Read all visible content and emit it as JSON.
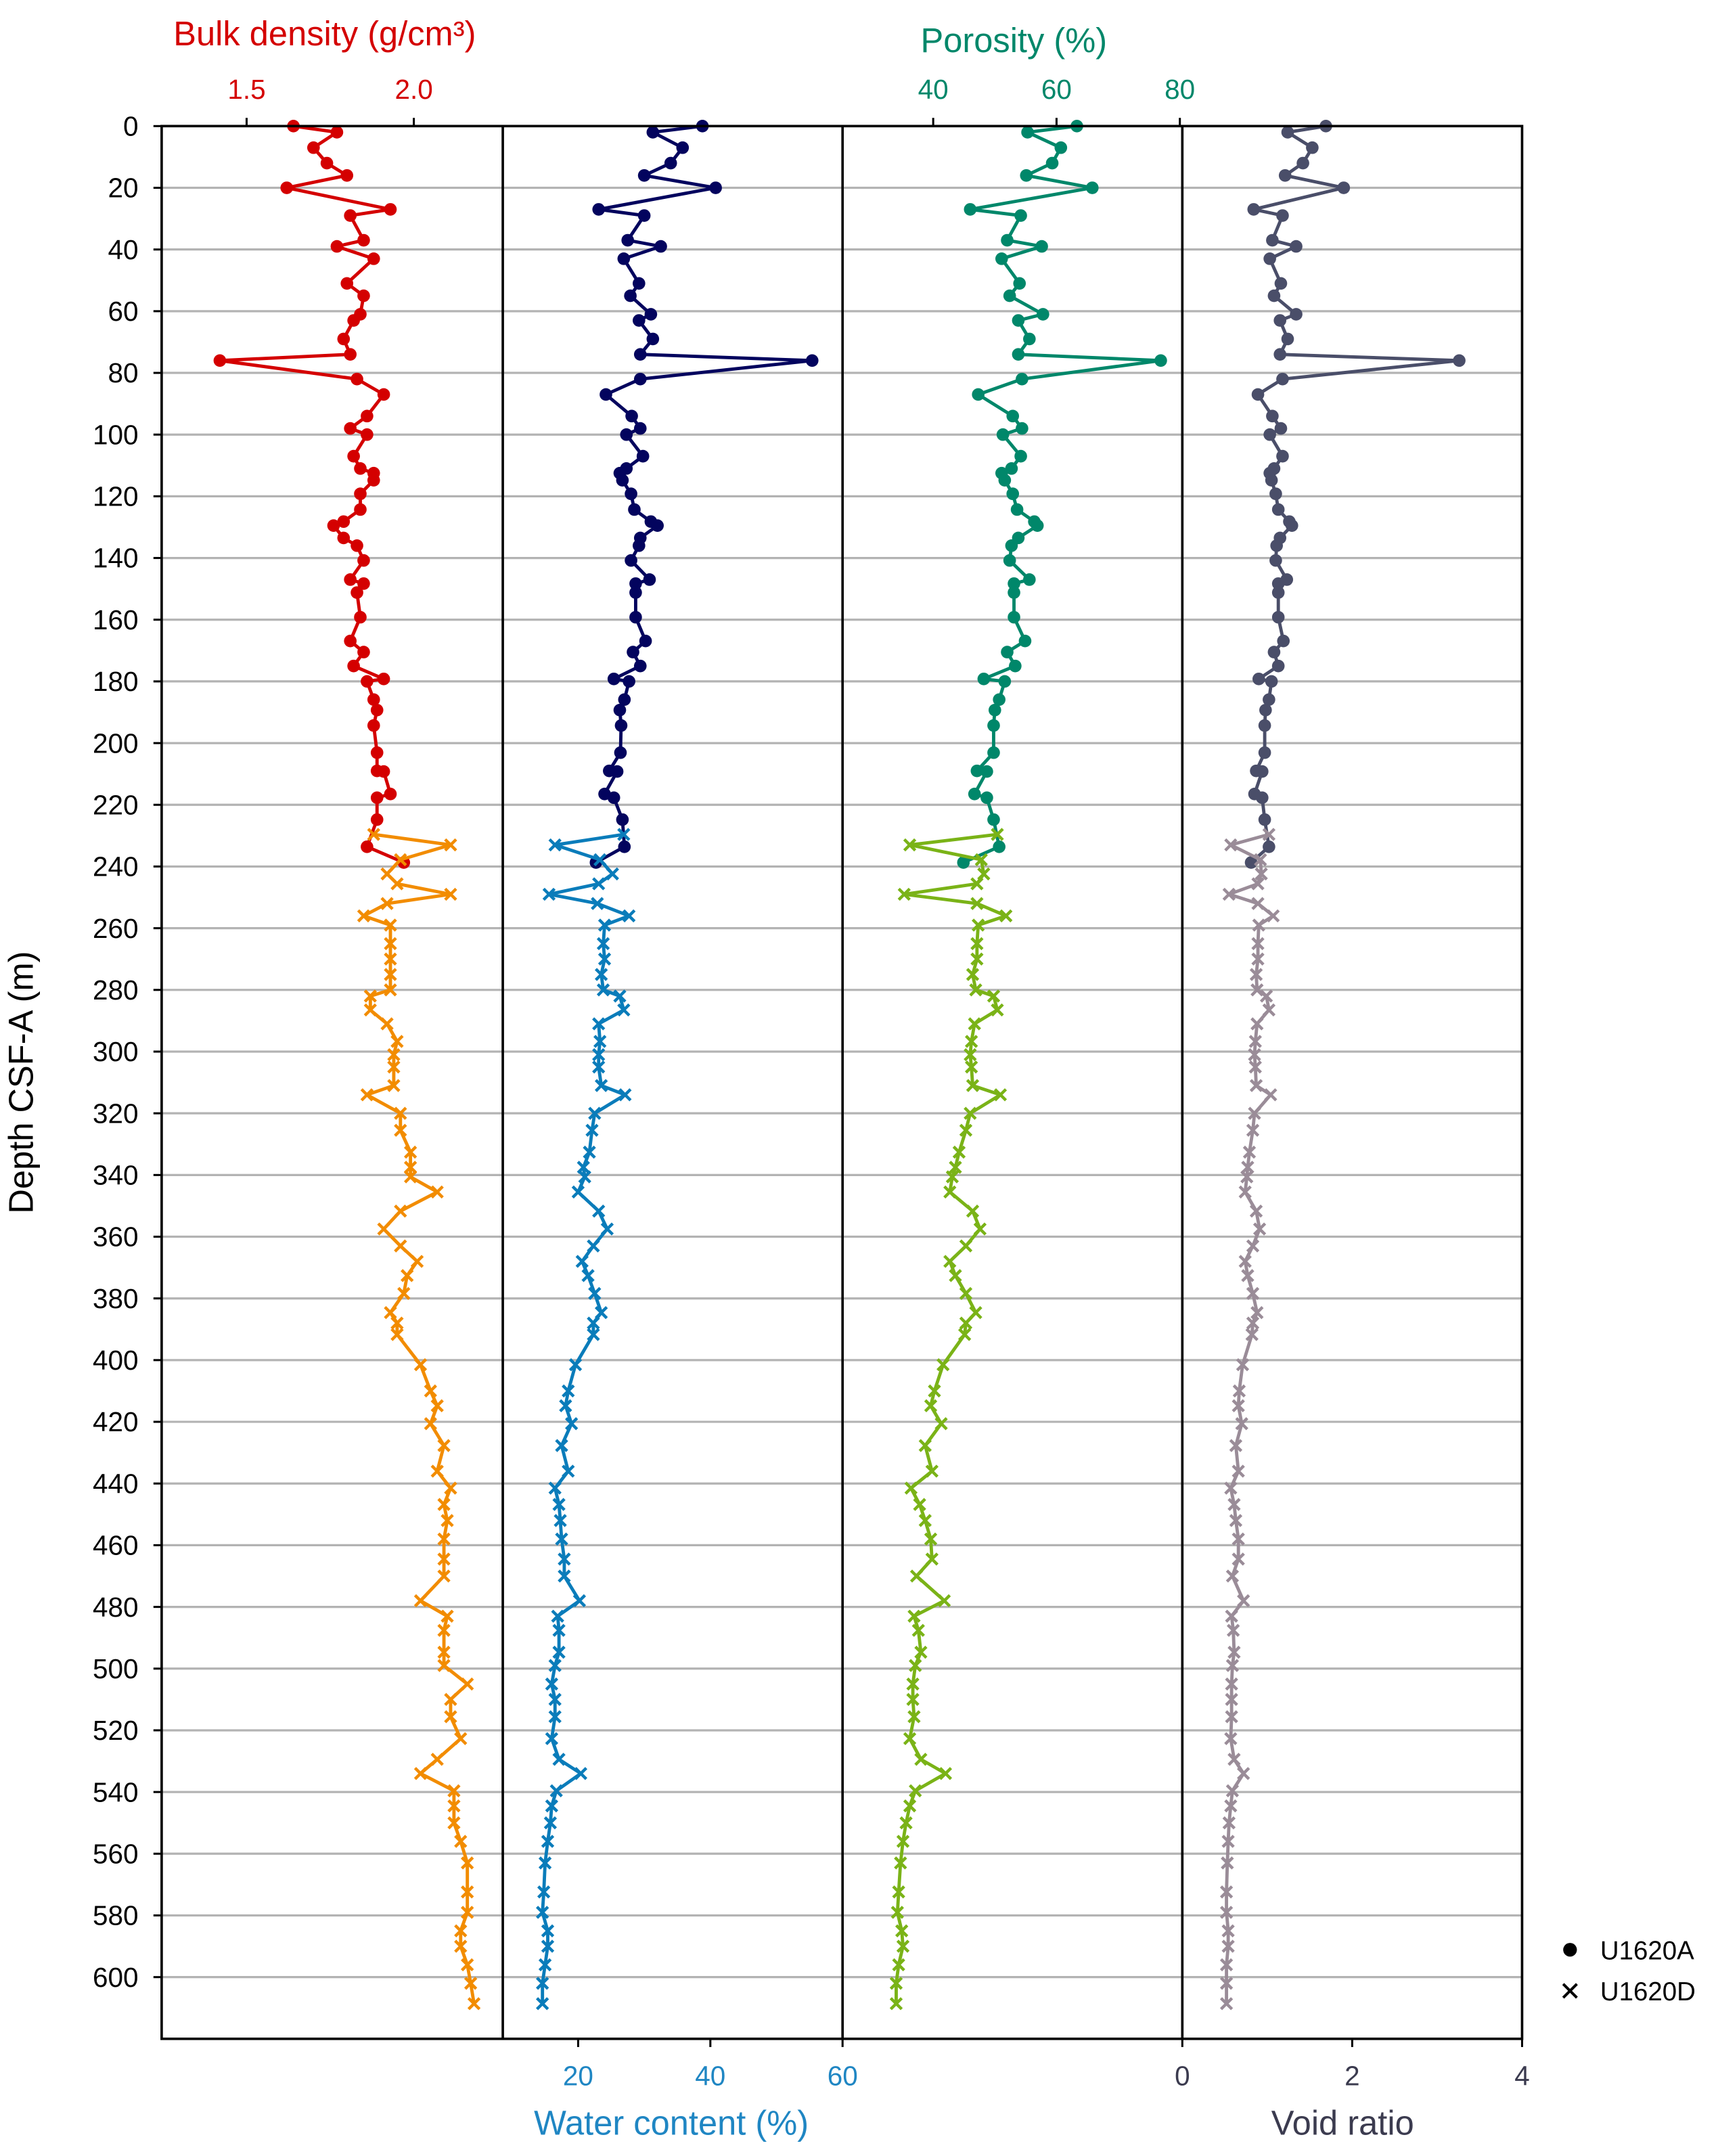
{
  "chart_data": {
    "type": "line",
    "y_axis": {
      "label": "Depth CSF-A (m)",
      "range": [
        0,
        620
      ],
      "inverted": true,
      "ticks": [
        0,
        20,
        40,
        60,
        80,
        100,
        120,
        140,
        160,
        180,
        200,
        220,
        240,
        260,
        280,
        300,
        320,
        340,
        360,
        380,
        400,
        420,
        440,
        460,
        480,
        500,
        520,
        540,
        560,
        580,
        600
      ],
      "grid": true
    },
    "depths": {
      "U1620A": [
        0,
        2,
        7,
        12,
        16,
        20,
        27,
        29,
        37,
        39,
        43,
        51,
        55,
        61,
        63,
        69,
        74,
        76,
        82,
        87,
        94,
        98,
        100,
        107,
        111,
        112.5,
        114.8,
        119.2,
        124.3,
        128.2,
        129.5,
        133.5,
        136,
        140.8,
        147,
        148.3,
        151.2,
        159.2,
        166.9,
        170.5,
        175,
        179.2,
        180,
        185.9,
        189.3,
        194.3,
        203.1,
        209,
        209.2,
        216.5,
        217.7,
        224.8,
        233.6,
        238.7
      ],
      "U1620D": [
        229.6,
        233,
        237.8,
        242.4,
        245.6,
        249,
        252,
        256,
        259,
        265,
        270,
        275,
        280,
        282,
        286.5,
        291,
        296.7,
        301,
        305,
        311,
        314,
        320,
        325.5,
        332.6,
        337.5,
        340.6,
        345.5,
        351.7,
        357.5,
        363,
        368,
        372.6,
        378.4,
        384.6,
        388,
        391.7,
        401.5,
        410,
        414.8,
        420.6,
        427.7,
        436,
        441.5,
        446.8,
        452,
        458,
        464.5,
        470,
        478,
        483,
        487.6,
        494.7,
        499,
        505,
        510,
        515.6,
        522.7,
        529.4,
        534,
        539.6,
        544.5,
        550,
        556,
        563,
        572.4,
        579,
        585,
        590,
        596,
        602,
        608.6
      ]
    },
    "panels": [
      {
        "id": "bulk-density",
        "xlabel": "Bulk density (g/cm³)",
        "xlabel_position": "top",
        "label_color": "#d40000",
        "xlim": [
          1.246,
          2.266
        ],
        "x_ticks": [
          1.5,
          2.0
        ],
        "x_tick_labels": [
          "1.5",
          "2.0"
        ],
        "series": [
          {
            "name": "U1620A",
            "marker": "circle",
            "color": "#d40000",
            "values": [
              1.64,
              1.77,
              1.7,
              1.74,
              1.8,
              1.62,
              1.93,
              1.81,
              1.85,
              1.77,
              1.88,
              1.8,
              1.85,
              1.84,
              1.82,
              1.79,
              1.81,
              1.42,
              1.83,
              1.91,
              1.86,
              1.81,
              1.86,
              1.82,
              1.84,
              1.88,
              1.88,
              1.84,
              1.84,
              1.79,
              1.76,
              1.79,
              1.83,
              1.85,
              1.81,
              1.85,
              1.83,
              1.84,
              1.81,
              1.85,
              1.82,
              1.91,
              1.86,
              1.88,
              1.89,
              1.88,
              1.89,
              1.89,
              1.91,
              1.93,
              1.89,
              1.89,
              1.86,
              1.97
            ]
          },
          {
            "name": "U1620D",
            "marker": "cross",
            "color": "#f28c00",
            "values": [
              1.88,
              2.11,
              1.96,
              1.92,
              1.95,
              2.11,
              1.92,
              1.85,
              1.93,
              1.93,
              1.93,
              1.93,
              1.93,
              1.87,
              1.87,
              1.92,
              1.95,
              1.94,
              1.94,
              1.94,
              1.86,
              1.96,
              1.96,
              1.99,
              1.99,
              1.99,
              2.07,
              1.96,
              1.91,
              1.96,
              2.01,
              1.98,
              1.97,
              1.93,
              1.95,
              1.95,
              2.02,
              2.05,
              2.07,
              2.05,
              2.09,
              2.07,
              2.11,
              2.09,
              2.1,
              2.09,
              2.09,
              2.09,
              2.02,
              2.1,
              2.09,
              2.09,
              2.09,
              2.16,
              2.11,
              2.11,
              2.14,
              2.07,
              2.02,
              2.12,
              2.12,
              2.12,
              2.14,
              2.16,
              2.16,
              2.16,
              2.14,
              2.14,
              2.16,
              2.17,
              2.18
            ]
          }
        ]
      },
      {
        "id": "water-content",
        "xlabel": "Water content (%)",
        "xlabel_position": "bottom",
        "label_color": "#1f86c3",
        "xlim": [
          8.6,
          60
        ],
        "x_ticks": [
          20,
          40,
          60
        ],
        "x_tick_labels": [
          "20",
          "40",
          "60"
        ],
        "series": [
          {
            "name": "U1620A",
            "marker": "circle",
            "color": "#03045e",
            "values": [
              38.8,
              31.3,
              35.8,
              34,
              30,
              40.8,
              23.1,
              30,
              27.5,
              32.5,
              26.9,
              29.2,
              27.9,
              31,
              29.2,
              31.3,
              29.4,
              55.4,
              29.4,
              24.2,
              28.1,
              29.4,
              27.3,
              29.8,
              27.3,
              26.3,
              26.7,
              28,
              28.5,
              31,
              32,
              29.4,
              29.2,
              28,
              30.8,
              28.7,
              28.7,
              28.7,
              30.2,
              28.3,
              29.4,
              25.4,
              27.7,
              27,
              26.3,
              26.5,
              26.4,
              24.7,
              25.9,
              24,
              25.4,
              26.7,
              27,
              22.7
            ]
          },
          {
            "name": "U1620D",
            "marker": "cross",
            "color": "#0a7cba",
            "values": [
              26.9,
              16.5,
              23.3,
              25.2,
              23.1,
              15.6,
              22.9,
              27.7,
              24,
              23.8,
              24,
              23.5,
              23.8,
              26.3,
              26.9,
              23.1,
              23.3,
              23.1,
              23.1,
              23.5,
              27.1,
              22.5,
              22.1,
              21.7,
              20.8,
              21,
              20,
              23.1,
              24.4,
              22.3,
              20.6,
              21.5,
              22.5,
              23.5,
              22.3,
              22.3,
              19.6,
              18.5,
              18.1,
              19,
              17.5,
              18.5,
              16.5,
              17.1,
              17.3,
              17.5,
              17.9,
              17.9,
              20.2,
              16.9,
              17.1,
              17.1,
              16.5,
              16,
              16.5,
              16.5,
              16,
              17.1,
              20.4,
              16.7,
              16,
              15.8,
              15.4,
              15,
              14.8,
              14.6,
              15.4,
              15.4,
              15,
              14.6,
              14.6
            ]
          }
        ]
      },
      {
        "id": "porosity",
        "xlabel": "Porosity (%)",
        "xlabel_position": "top",
        "label_color": "#00876a",
        "xlim": [
          25.3,
          80.4
        ],
        "x_ticks": [
          40,
          60,
          80
        ],
        "x_tick_labels": [
          "40",
          "60",
          "80"
        ],
        "series": [
          {
            "name": "U1620A",
            "marker": "circle",
            "color": "#00876a",
            "values": [
              63.3,
              55.3,
              60.7,
              59.3,
              55.1,
              65.8,
              46,
              54.2,
              52,
              57.6,
              51.1,
              54,
              52.4,
              57.8,
              53.8,
              55.6,
              53.8,
              76.9,
              54.4,
              47.3,
              52.9,
              54.4,
              51.3,
              54.2,
              52.7,
              51.1,
              51.6,
              52.9,
              53.6,
              56.4,
              56.9,
              53.8,
              52.7,
              52.4,
              55.6,
              53.1,
              53.1,
              53.1,
              54.9,
              52,
              53.3,
              48.2,
              51.6,
              50.7,
              50,
              49.8,
              49.8,
              47.1,
              48.7,
              46.7,
              48.7,
              49.8,
              50.7,
              44.9
            ]
          },
          {
            "name": "U1620D",
            "marker": "cross",
            "color": "#7ab317",
            "values": [
              50.4,
              36.2,
              47.8,
              48.2,
              47.1,
              35.3,
              47.1,
              51.8,
              47.3,
              47.1,
              47.1,
              46.4,
              46.9,
              49.8,
              50.4,
              46.7,
              46.2,
              46,
              46.2,
              46.4,
              50.9,
              46,
              45.3,
              44.2,
              43.6,
              43.1,
              42.7,
              46.4,
              47.6,
              45.3,
              42.7,
              43.6,
              45.3,
              46.9,
              45.3,
              45.1,
              41.6,
              40.2,
              39.6,
              41.3,
              38.7,
              39.8,
              36.4,
              37.8,
              38.7,
              39.6,
              39.8,
              37.3,
              41.8,
              36.9,
              37.6,
              38,
              37.1,
              36.7,
              36.7,
              36.9,
              36.2,
              38,
              42,
              37.1,
              36.2,
              35.6,
              35.1,
              34.7,
              34.4,
              34.2,
              34.9,
              35.1,
              34.4,
              34,
              34
            ]
          }
        ]
      },
      {
        "id": "void-ratio",
        "xlabel": "Void ratio",
        "xlabel_position": "bottom",
        "label_color": "#3b3b4f",
        "xlim": [
          0,
          4
        ],
        "x_ticks": [
          0,
          2,
          4
        ],
        "x_tick_labels": [
          "0",
          "2",
          "4"
        ],
        "series": [
          {
            "name": "U1620A",
            "marker": "circle",
            "color": "#4a4e69",
            "values": [
              1.69,
              1.24,
              1.53,
              1.42,
              1.21,
              1.9,
              0.84,
              1.18,
              1.06,
              1.34,
              1.03,
              1.16,
              1.08,
              1.34,
              1.15,
              1.24,
              1.15,
              3.26,
              1.18,
              0.89,
              1.06,
              1.16,
              1.03,
              1.18,
              1.08,
              1.03,
              1.05,
              1.1,
              1.13,
              1.26,
              1.29,
              1.15,
              1.11,
              1.1,
              1.23,
              1.13,
              1.13,
              1.13,
              1.19,
              1.08,
              1.13,
              0.9,
              1.05,
              1.02,
              0.98,
              0.97,
              0.97,
              0.87,
              0.94,
              0.85,
              0.94,
              0.97,
              1.02,
              0.81
            ]
          },
          {
            "name": "U1620D",
            "marker": "cross",
            "color": "#9a8c98",
            "values": [
              1.02,
              0.57,
              0.92,
              0.93,
              0.89,
              0.55,
              0.89,
              1.07,
              0.9,
              0.89,
              0.89,
              0.87,
              0.88,
              0.99,
              1.02,
              0.88,
              0.86,
              0.85,
              0.86,
              0.87,
              1.04,
              0.85,
              0.83,
              0.79,
              0.77,
              0.76,
              0.74,
              0.87,
              0.91,
              0.83,
              0.74,
              0.77,
              0.83,
              0.88,
              0.83,
              0.82,
              0.71,
              0.67,
              0.66,
              0.7,
              0.63,
              0.66,
              0.57,
              0.61,
              0.63,
              0.66,
              0.66,
              0.59,
              0.72,
              0.58,
              0.6,
              0.61,
              0.59,
              0.58,
              0.58,
              0.58,
              0.57,
              0.61,
              0.72,
              0.59,
              0.57,
              0.55,
              0.54,
              0.53,
              0.52,
              0.52,
              0.54,
              0.54,
              0.52,
              0.52,
              0.52
            ]
          }
        ]
      }
    ],
    "legend": {
      "position": "bottom-right",
      "entries": [
        {
          "label": "U1620A",
          "marker": "circle"
        },
        {
          "label": "U1620D",
          "marker": "cross"
        }
      ]
    }
  }
}
